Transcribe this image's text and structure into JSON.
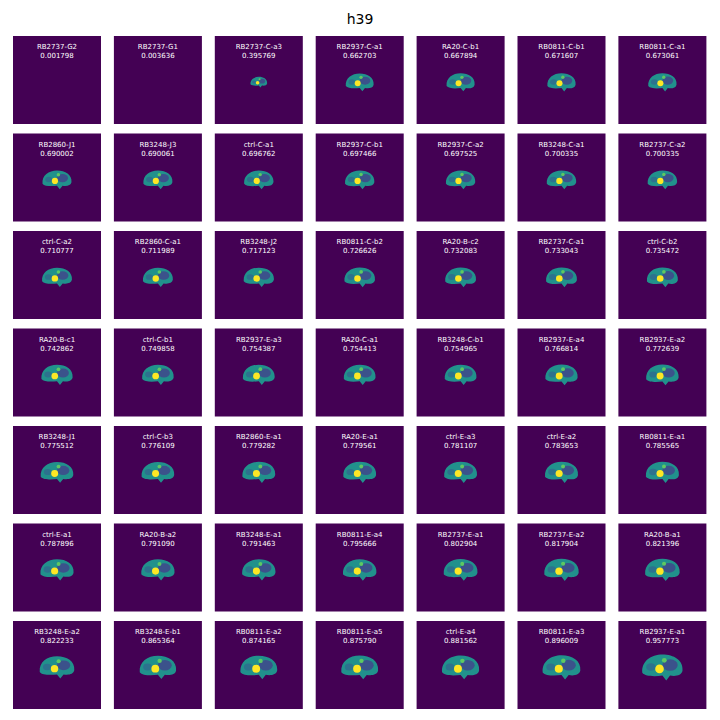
{
  "chart_data": {
    "type": "image_grid",
    "title": "h39",
    "categories": [
      "RB2737-G2",
      "RB2737-G1",
      "RB2737-C-a3",
      "RB2937-C-a1",
      "RA20-C-b1",
      "RB0811-C-b1",
      "RB0811-C-a1",
      "RB2860-J1",
      "RB3248-J3",
      "ctrl-C-a1",
      "RB2937-C-b1",
      "RB2937-C-a2",
      "RB3248-C-a1",
      "RB2737-C-a2",
      "ctrl-C-a2",
      "RB2860-C-a1",
      "RB3248-J2",
      "RB0811-C-b2",
      "RA20-B-c2",
      "RB2737-C-a1",
      "ctrl-C-b2",
      "RA20-B-c1",
      "ctrl-C-b1",
      "RB2937-E-a3",
      "RA20-C-a1",
      "RB3248-C-b1",
      "RB2937-E-a4",
      "RB2937-E-a2",
      "RB3248-J1",
      "ctrl-C-b3",
      "RB2860-E-a1",
      "RA20-E-a1",
      "ctrl-E-a3",
      "ctrl-E-a2",
      "RB0811-E-a1",
      "ctrl-E-a1",
      "RA20-B-a2",
      "RB3248-E-a1",
      "RB0811-E-a4",
      "RB2737-E-a1",
      "RB2737-E-a2",
      "RA20-B-a1",
      "RB3248-E-a2",
      "RB3248-E-b1",
      "RB0811-E-a2",
      "RB0811-E-a5",
      "ctrl-E-a4",
      "RB0811-E-a3",
      "RB2937-E-a1"
    ],
    "values": [
      0.001798,
      0.003636,
      0.395769,
      0.662703,
      0.667894,
      0.671607,
      0.673061,
      0.690002,
      0.690061,
      0.696762,
      0.697466,
      0.697525,
      0.700335,
      0.700335,
      0.710777,
      0.711989,
      0.717123,
      0.726626,
      0.732083,
      0.733043,
      0.735472,
      0.742862,
      0.749858,
      0.754387,
      0.754413,
      0.754965,
      0.766814,
      0.772639,
      0.775512,
      0.776109,
      0.779282,
      0.779561,
      0.781107,
      0.783653,
      0.785565,
      0.787896,
      0.79109,
      0.791463,
      0.795666,
      0.802904,
      0.817904,
      0.821396,
      0.822233,
      0.865364,
      0.874165,
      0.87579,
      0.881562,
      0.896009,
      0.957773
    ],
    "value_labels": [
      "0.001798",
      "0.003636",
      "0.395769",
      "0.662703",
      "0.667894",
      "0.671607",
      "0.673061",
      "0.690002",
      "0.690061",
      "0.696762",
      "0.697466",
      "0.697525",
      "0.700335",
      "0.700335",
      "0.710777",
      "0.711989",
      "0.717123",
      "0.726626",
      "0.732083",
      "0.733043",
      "0.735472",
      "0.742862",
      "0.749858",
      "0.754387",
      "0.754413",
      "0.754965",
      "0.766814",
      "0.772639",
      "0.775512",
      "0.776109",
      "0.779282",
      "0.779561",
      "0.781107",
      "0.783653",
      "0.785565",
      "0.787896",
      "0.791090",
      "0.791463",
      "0.795666",
      "0.802904",
      "0.817904",
      "0.821396",
      "0.822233",
      "0.865364",
      "0.874165",
      "0.875790",
      "0.881562",
      "0.896009",
      "0.957773"
    ]
  }
}
